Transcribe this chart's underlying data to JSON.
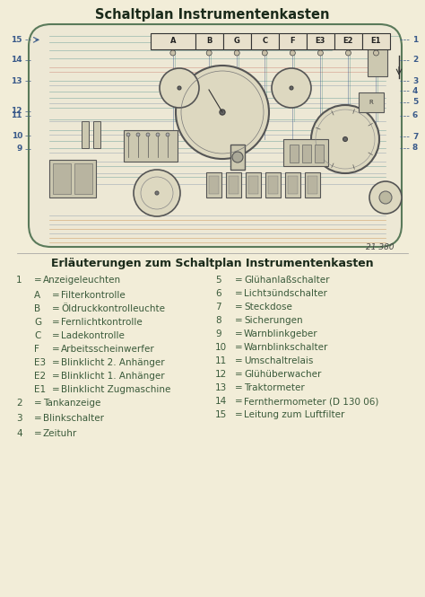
{
  "bg_color": "#f2edd8",
  "title_top": "Schaltplan Instrumentenkasten",
  "title_bottom": "Erläuterungen zum Schaltplan Instrumentenkasten",
  "diagram_number": "21 380",
  "connector_labels": [
    "A",
    "B",
    "G",
    "C",
    "F",
    "E3",
    "E2",
    "E1"
  ],
  "legend_left": [
    [
      "1",
      "=",
      "Anzeigeleuchten",
      false
    ],
    [
      "A",
      "=",
      "Filterkontrolle",
      true
    ],
    [
      "B",
      "=",
      "Öldruckkontrolleuchte",
      true
    ],
    [
      "G",
      "=",
      "Fernlichtkontrolle",
      true
    ],
    [
      "C",
      "=",
      "Ladekontrolle",
      true
    ],
    [
      "F",
      "=",
      "Arbeitsscheinwerfer",
      true
    ],
    [
      "E3",
      "=",
      "Blinklicht 2. Anhänger",
      true
    ],
    [
      "E2",
      "=",
      "Blinklicht 1. Anhänger",
      true
    ],
    [
      "E1",
      "=",
      "Blinklicht Zugmaschine",
      true
    ],
    [
      "2",
      "=",
      "Tankanzeige",
      false
    ],
    [
      "3",
      "=",
      "Blinkschalter",
      false
    ],
    [
      "4",
      "=",
      "Zeituhr",
      false
    ]
  ],
  "legend_right": [
    [
      "5",
      "=",
      "Glühanlаßschalter"
    ],
    [
      "6",
      "=",
      "Lichtзündschalter"
    ],
    [
      "7",
      "=",
      "Steckdose"
    ],
    [
      "8",
      "=",
      "Sicherungen"
    ],
    [
      "9",
      "=",
      "Warnblinkgeber"
    ],
    [
      "10",
      "=",
      "Warnblinkschalter"
    ],
    [
      "11",
      "=",
      "Umschaltrelais"
    ],
    [
      "12",
      "=",
      "Glühüberwacher"
    ],
    [
      "13",
      "=",
      "Traktormeter"
    ],
    [
      "14",
      "=",
      "Fernthermometer (D 130 06)"
    ],
    [
      "15",
      "=",
      "Leitung zum Luftfilter"
    ]
  ],
  "text_color": "#3a5a3a",
  "title_color": "#1a2a1a",
  "dc": "#3a5a8a",
  "teal": "#2a7a7a",
  "orange": "#c07828",
  "red_wire": "#b03020",
  "diagram_bg": "#ede8d5"
}
